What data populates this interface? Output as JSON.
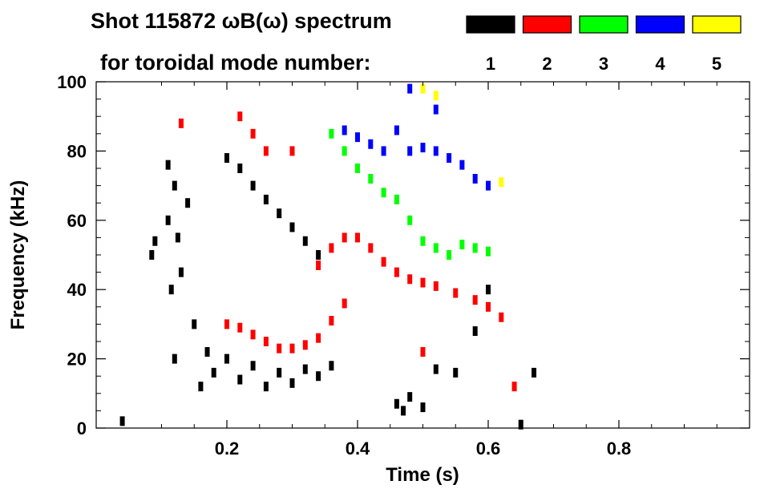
{
  "header": {
    "title_line1": "Shot 115872 ωB(ω) spectrum",
    "title_line2": "for toroidal mode number:"
  },
  "legend": [
    {
      "label": "1",
      "color": "#000000"
    },
    {
      "label": "2",
      "color": "#ff0000"
    },
    {
      "label": "3",
      "color": "#00ff00"
    },
    {
      "label": "4",
      "color": "#0000ff"
    },
    {
      "label": "5",
      "color": "#ffff00"
    }
  ],
  "chart_data": {
    "type": "scatter",
    "title": "Shot 115872 ωB(ω) spectrum for toroidal mode number:",
    "xlabel": "Time (s)",
    "ylabel": "Frequency (kHz)",
    "xlim": [
      0.0,
      1.0
    ],
    "ylim": [
      0,
      100
    ],
    "xticks": [
      0.2,
      0.4,
      0.6,
      0.8
    ],
    "xtick_labels": [
      "0.2",
      "0.4",
      "0.6",
      "0.8"
    ],
    "yticks": [
      0,
      20,
      40,
      60,
      80,
      100
    ],
    "ytick_labels": [
      "0",
      "20",
      "40",
      "60",
      "80",
      "100"
    ],
    "grid": false,
    "series": [
      {
        "name": "1",
        "color": "#000000",
        "points": [
          [
            0.04,
            2
          ],
          [
            0.085,
            50
          ],
          [
            0.09,
            54
          ],
          [
            0.11,
            76
          ],
          [
            0.11,
            60
          ],
          [
            0.115,
            40
          ],
          [
            0.12,
            20
          ],
          [
            0.12,
            70
          ],
          [
            0.125,
            55
          ],
          [
            0.13,
            45
          ],
          [
            0.14,
            65
          ],
          [
            0.15,
            30
          ],
          [
            0.16,
            12
          ],
          [
            0.17,
            22
          ],
          [
            0.18,
            16
          ],
          [
            0.2,
            20
          ],
          [
            0.22,
            14
          ],
          [
            0.24,
            18
          ],
          [
            0.26,
            12
          ],
          [
            0.28,
            16
          ],
          [
            0.3,
            13
          ],
          [
            0.32,
            17
          ],
          [
            0.34,
            15
          ],
          [
            0.36,
            18
          ],
          [
            0.2,
            78
          ],
          [
            0.22,
            75
          ],
          [
            0.24,
            70
          ],
          [
            0.26,
            66
          ],
          [
            0.28,
            62
          ],
          [
            0.3,
            58
          ],
          [
            0.32,
            54
          ],
          [
            0.34,
            50
          ],
          [
            0.46,
            7
          ],
          [
            0.47,
            5
          ],
          [
            0.48,
            9
          ],
          [
            0.5,
            6
          ],
          [
            0.52,
            17
          ],
          [
            0.55,
            16
          ],
          [
            0.58,
            28
          ],
          [
            0.6,
            40
          ],
          [
            0.67,
            16
          ],
          [
            0.65,
            1
          ]
        ]
      },
      {
        "name": "2",
        "color": "#ff0000",
        "points": [
          [
            0.13,
            88
          ],
          [
            0.2,
            30
          ],
          [
            0.22,
            29
          ],
          [
            0.24,
            27
          ],
          [
            0.26,
            25
          ],
          [
            0.28,
            23
          ],
          [
            0.3,
            23
          ],
          [
            0.32,
            24
          ],
          [
            0.34,
            26
          ],
          [
            0.36,
            31
          ],
          [
            0.38,
            36
          ],
          [
            0.34,
            47
          ],
          [
            0.36,
            52
          ],
          [
            0.38,
            55
          ],
          [
            0.4,
            55
          ],
          [
            0.42,
            52
          ],
          [
            0.44,
            48
          ],
          [
            0.46,
            45
          ],
          [
            0.48,
            43
          ],
          [
            0.5,
            42
          ],
          [
            0.52,
            41
          ],
          [
            0.55,
            39
          ],
          [
            0.58,
            37
          ],
          [
            0.6,
            35
          ],
          [
            0.62,
            32
          ],
          [
            0.64,
            12
          ],
          [
            0.22,
            90
          ],
          [
            0.24,
            85
          ],
          [
            0.26,
            80
          ],
          [
            0.3,
            80
          ],
          [
            0.5,
            22
          ]
        ]
      },
      {
        "name": "3",
        "color": "#00ff00",
        "points": [
          [
            0.36,
            85
          ],
          [
            0.38,
            80
          ],
          [
            0.4,
            75
          ],
          [
            0.42,
            72
          ],
          [
            0.44,
            68
          ],
          [
            0.46,
            66
          ],
          [
            0.48,
            60
          ],
          [
            0.5,
            54
          ],
          [
            0.52,
            52
          ],
          [
            0.54,
            50
          ],
          [
            0.56,
            53
          ],
          [
            0.58,
            52
          ],
          [
            0.6,
            51
          ]
        ]
      },
      {
        "name": "4",
        "color": "#0000ff",
        "points": [
          [
            0.38,
            86
          ],
          [
            0.4,
            84
          ],
          [
            0.42,
            82
          ],
          [
            0.44,
            80
          ],
          [
            0.46,
            86
          ],
          [
            0.48,
            80
          ],
          [
            0.5,
            81
          ],
          [
            0.52,
            80
          ],
          [
            0.54,
            78
          ],
          [
            0.56,
            76
          ],
          [
            0.58,
            72
          ],
          [
            0.6,
            70
          ],
          [
            0.48,
            98
          ],
          [
            0.52,
            92
          ]
        ]
      },
      {
        "name": "5",
        "color": "#ffff00",
        "points": [
          [
            0.5,
            98
          ],
          [
            0.52,
            96
          ],
          [
            0.62,
            71
          ]
        ]
      }
    ]
  }
}
